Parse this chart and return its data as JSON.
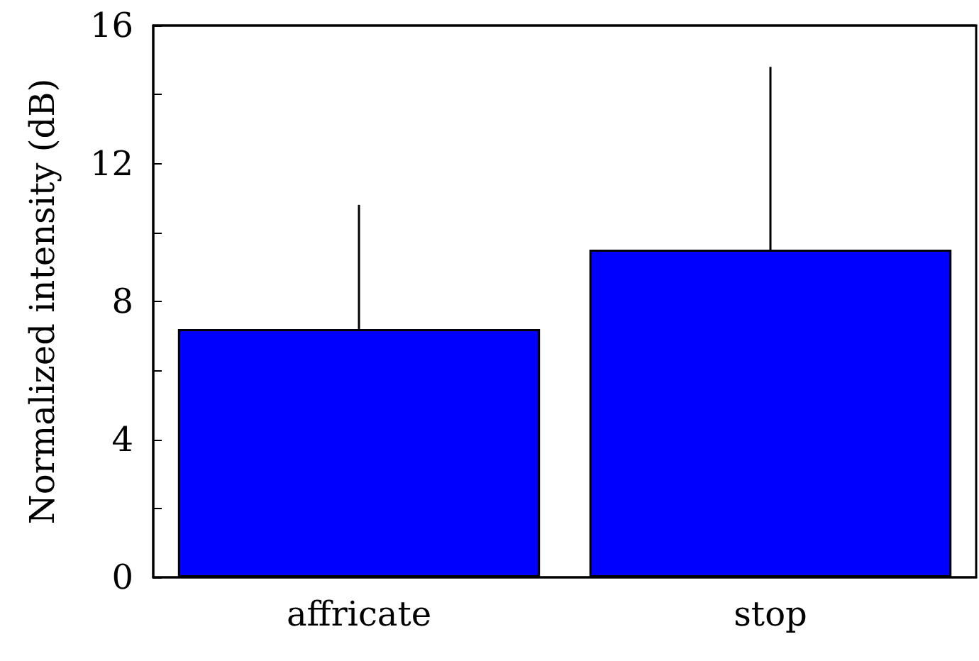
{
  "chart_data": {
    "type": "bar",
    "ylabel": "Normalized intensity (dB)",
    "categories": [
      "affricate",
      "stop"
    ],
    "values": [
      7.2,
      9.5
    ],
    "errors": [
      [
        7.2,
        10.8
      ],
      [
        9.5,
        14.8
      ]
    ],
    "color": "#0000ff",
    "ylim": [
      0,
      16
    ],
    "yticks": [
      0,
      {
        "value": 2,
        "label": null
      },
      4,
      {
        "value": 6,
        "label": null
      },
      8,
      {
        "value": 10,
        "label": null
      },
      12,
      {
        "value": 14,
        "label": null
      },
      16
    ],
    "grid": false
  }
}
